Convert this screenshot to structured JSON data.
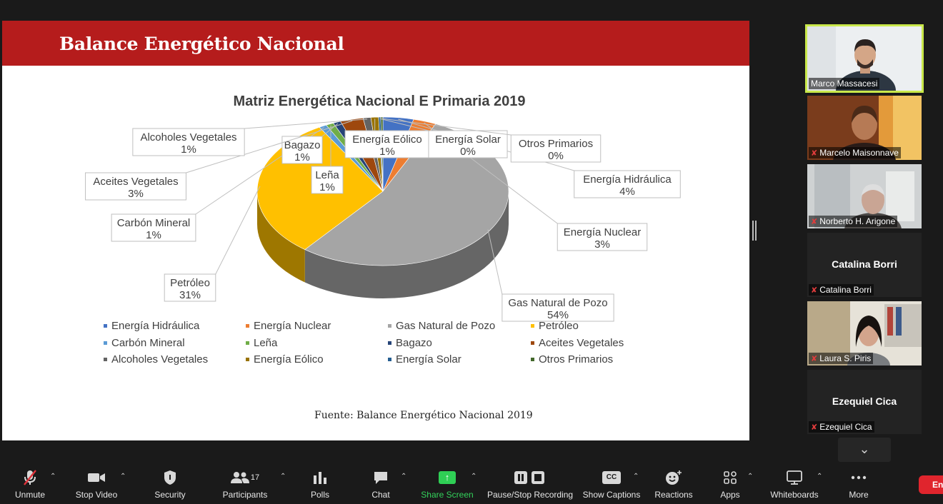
{
  "slide": {
    "title": "Balance Energético Nacional",
    "source": "Fuente: Balance Energético Nacional 2019"
  },
  "chart_data": {
    "type": "pie",
    "title": "Matriz Energética Nacional E Primaria 2019",
    "categories": [
      "Energía Hidráulica",
      "Energía Nuclear",
      "Gas Natural de Pozo",
      "Petróleo",
      "Carbón Mineral",
      "Leña",
      "Bagazo",
      "Aceites Vegetales",
      "Alcoholes Vegetales",
      "Energía Eólico",
      "Energía Solar",
      "Otros Primarios"
    ],
    "values": [
      4,
      3,
      54,
      31,
      1,
      1,
      1,
      3,
      1,
      1,
      0,
      0
    ],
    "value_labels": [
      "4%",
      "3%",
      "54%",
      "31%",
      "1%",
      "1%",
      "1%",
      "3%",
      "1%",
      "1%",
      "0%",
      "0%"
    ],
    "colors": [
      "#4472c4",
      "#ed7d31",
      "#a5a5a5",
      "#ffc000",
      "#5b9bd5",
      "#70ad47",
      "#264478",
      "#9e480e",
      "#636363",
      "#997300",
      "#255e91",
      "#43682b"
    ],
    "legend_position": "bottom"
  },
  "participants": [
    {
      "name": "Marco Massacesi",
      "active": true,
      "muted": false,
      "video": true
    },
    {
      "name": "Marcelo Maisonnave",
      "active": false,
      "muted": true,
      "video": true
    },
    {
      "name": "Norberto H. Arigone",
      "active": false,
      "muted": true,
      "video": true
    },
    {
      "name": "Catalina Borri",
      "active": false,
      "muted": true,
      "video": false
    },
    {
      "name": "Laura S. Piris",
      "active": false,
      "muted": true,
      "video": true
    },
    {
      "name": "Ezequiel Cica",
      "active": false,
      "muted": true,
      "video": false
    }
  ],
  "toolbar": {
    "unmute": "Unmute",
    "stop_video": "Stop Video",
    "security": "Security",
    "participants": "Participants",
    "participants_count": "17",
    "polls": "Polls",
    "chat": "Chat",
    "share_screen": "Share Screen",
    "recording": "Pause/Stop Recording",
    "captions": "Show Captions",
    "captions_icon_text": "CC",
    "reactions": "Reactions",
    "apps": "Apps",
    "whiteboards": "Whiteboards",
    "more": "More",
    "end": "End"
  },
  "icons": {
    "unmute": "mic-off-icon",
    "stop_video": "video-camera-icon",
    "security": "shield-icon",
    "participants": "people-icon",
    "polls": "bar-chart-icon",
    "chat": "chat-bubble-icon",
    "share_screen": "share-arrow-icon",
    "recording": "pause-stop-icon",
    "captions": "cc-icon",
    "reactions": "emoji-plus-icon",
    "apps": "apps-icon",
    "whiteboards": "whiteboard-icon",
    "more": "more-dots-icon"
  }
}
